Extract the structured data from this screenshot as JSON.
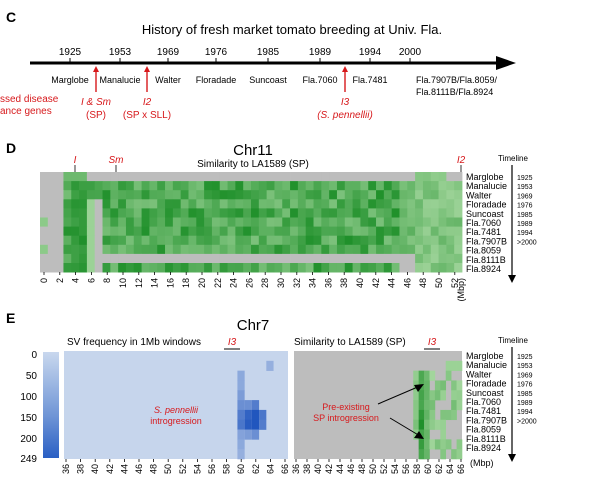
{
  "panel_c": {
    "letter": "C",
    "title": "History of fresh market tomato breeding at Univ. Fla.",
    "years": [
      {
        "year": "1925",
        "variety": "Marglobe"
      },
      {
        "year": "1953",
        "variety": "Manalucie"
      },
      {
        "year": "1969",
        "variety": "Walter"
      },
      {
        "year": "1976",
        "variety": "Floradade"
      },
      {
        "year": "1985",
        "variety": "Suncoast"
      },
      {
        "year": "1989",
        "variety": "Fla.7060"
      },
      {
        "year": "1994",
        "variety": "Fla.7481"
      },
      {
        "year": "2000",
        "variety": "Fla.7907B/Fla.8059/"
      }
    ],
    "variety_line2": "Fla.8111B/Fla.8924",
    "left_note": [
      "ssed disease",
      "ance genes"
    ],
    "introductions": [
      {
        "gene": "I & Sm",
        "source": "(SP)"
      },
      {
        "gene": "I2",
        "source": "(SP x SLL)"
      },
      {
        "gene": "I3",
        "source": "(S. pennellii)"
      }
    ]
  },
  "panel_d": {
    "letter": "D",
    "chrom": "Chr11",
    "subtitle": "Similarity to LA1589 (SP)",
    "markers": [
      "I",
      "Sm",
      "I2"
    ],
    "x_ticks": [
      "0",
      "2",
      "4",
      "6",
      "8",
      "10",
      "12",
      "14",
      "16",
      "18",
      "20",
      "22",
      "24",
      "26",
      "28",
      "30",
      "32",
      "34",
      "36",
      "38",
      "40",
      "42",
      "44",
      "46",
      "48",
      "50",
      "52"
    ],
    "x_unit": "(Mbp)",
    "timeline_label": "Timeline",
    "varieties": [
      "Marglobe",
      "Manalucie",
      "Walter",
      "Floradade",
      "Suncoast",
      "Fla.7060",
      "Fla.7481",
      "Fla.7907B",
      "Fla.8059",
      "Fla.8111B",
      "Fla.8924"
    ],
    "timeline": [
      "1925",
      "1953",
      "1969",
      "1976",
      "1985",
      "1989",
      "1994",
      ">2000"
    ]
  },
  "panel_e": {
    "letter": "E",
    "chrom": "Chr7",
    "left_title": "SV frequency in 1Mb windows",
    "right_title": "Similarity to LA1589 (SP)",
    "marker": "I3",
    "scale_ticks": [
      "0",
      "50",
      "100",
      "150",
      "200",
      "249"
    ],
    "x_ticks": [
      "36",
      "38",
      "40",
      "42",
      "44",
      "46",
      "48",
      "50",
      "52",
      "54",
      "56",
      "58",
      "60",
      "62",
      "64",
      "66"
    ],
    "x_unit": "(Mbp)",
    "left_annotation": [
      "S. pennellii",
      "introgression"
    ],
    "right_annotation": [
      "Pre-existing",
      "SP introgression"
    ],
    "timeline_label": "Timeline",
    "varieties": [
      "Marglobe",
      "Manalucie",
      "Walter",
      "Floradade",
      "Suncoast",
      "Fla.7060",
      "Fla.7481",
      "Fla.7907B",
      "Fla.8059",
      "Fla.8111B",
      "Fla.8924"
    ],
    "timeline": [
      "1925",
      "1953",
      "1969",
      "1976",
      "1985",
      "1989",
      "1994",
      ">2000"
    ]
  },
  "colors": {
    "red": "#d7191c",
    "green_dark": "#1f9a2e",
    "green_mid": "#4cb050",
    "green_light": "#a6d8a0",
    "gray": "#bdbdbd",
    "blue_light": "#c6d5ec",
    "blue_dark": "#2a5fc4"
  }
}
